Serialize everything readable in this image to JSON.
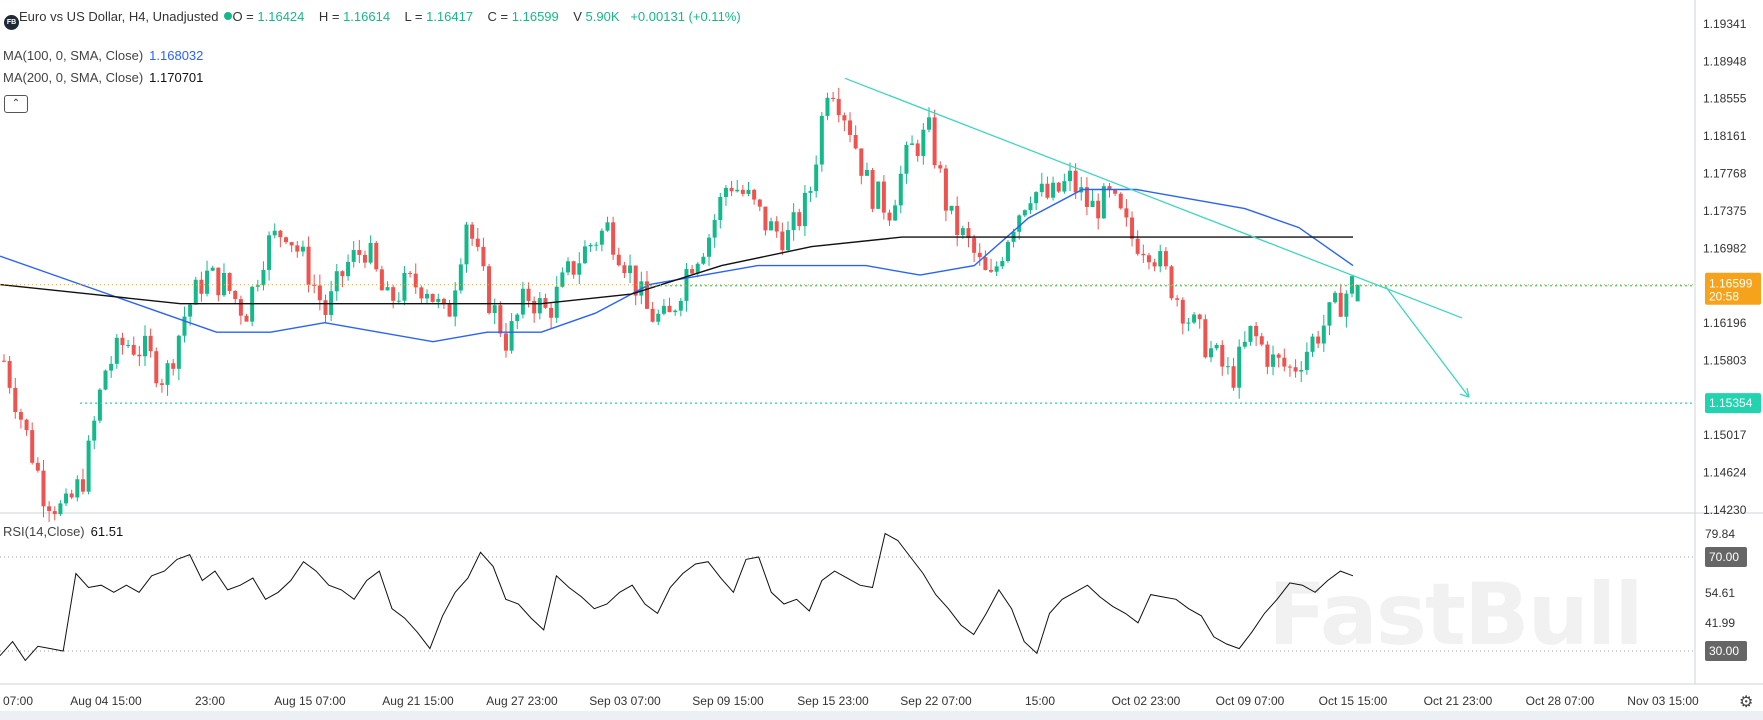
{
  "header": {
    "logo_text": "FB",
    "symbol_title": "Euro vs US Dollar, H4, Unadjusted",
    "ohlc": [
      {
        "label": "O",
        "value": "1.16424"
      },
      {
        "label": "H",
        "value": "1.16614"
      },
      {
        "label": "L",
        "value": "1.16417"
      },
      {
        "label": "C",
        "value": "1.16599"
      }
    ],
    "volume_label": "V",
    "volume_value": "5.90K",
    "change": "+0.00131 (+0.11%)"
  },
  "indicators": [
    {
      "label": "MA(100, 0, SMA, Close)",
      "value": "1.168032",
      "color": "#2962ff"
    },
    {
      "label": "MA(200, 0, SMA, Close)",
      "value": "1.170701",
      "color": "#111111"
    }
  ],
  "rsi": {
    "label": "RSI(14,Close)",
    "value": "61.51"
  },
  "watermark": "FastBull",
  "icons": {
    "settings": "gear-icon",
    "collapse": "chevron-up-icon"
  },
  "colors": {
    "up": "#13b98a",
    "down": "#ef5350",
    "ma100": "#2962ff",
    "ma200": "#111111",
    "trendline": "#3fd5c0",
    "current_price_bg": "#f7a21b",
    "level_bg": "#22d3b0",
    "axis_tag_bg": "#666666"
  },
  "chart_data": [
    {
      "type": "candlestick",
      "title": "Euro vs US Dollar, H4, Unadjusted",
      "price_axis_ticks": [
        "1.19341",
        "1.18948",
        "1.18555",
        "1.18161",
        "1.17768",
        "1.17375",
        "1.16982",
        "1.16196",
        "1.15803",
        "1.15017",
        "1.14624",
        "1.14230"
      ],
      "time_axis_ticks": [
        "07:00",
        "Aug 04 15:00",
        "23:00",
        "Aug 15 07:00",
        "Aug 21 15:00",
        "Aug 27 23:00",
        "Sep 03 07:00",
        "Sep 09 15:00",
        "Sep 15 23:00",
        "Sep 22 07:00",
        "15:00",
        "Oct 02 23:00",
        "Oct 09 07:00",
        "Oct 15 15:00",
        "Oct 21 23:00",
        "Oct 28 07:00",
        "Nov 03 15:00"
      ],
      "current_price": "1.16599",
      "countdown": "20:58",
      "horizontal_level": "1.15354",
      "ma100_last": 1.168032,
      "ma200_last": 1.170701,
      "close_path": [
        1.158,
        1.151,
        1.144,
        1.142,
        1.146,
        1.157,
        1.16,
        1.159,
        1.156,
        1.163,
        1.167,
        1.166,
        1.163,
        1.17,
        1.172,
        1.168,
        1.163,
        1.168,
        1.17,
        1.164,
        1.166,
        1.166,
        1.162,
        1.173,
        1.165,
        1.16,
        1.165,
        1.163,
        1.167,
        1.17,
        1.172,
        1.168,
        1.163,
        1.162,
        1.168,
        1.171,
        1.177,
        1.175,
        1.172,
        1.171,
        1.175,
        1.188,
        1.183,
        1.176,
        1.174,
        1.18,
        1.182,
        1.173,
        1.17,
        1.166,
        1.172,
        1.176,
        1.175,
        1.177,
        1.174,
        1.175,
        1.171,
        1.17,
        1.166,
        1.162,
        1.159,
        1.156,
        1.161,
        1.158,
        1.157,
        1.16,
        1.163,
        1.166
      ],
      "ma100_path": [
        1.169,
        1.167,
        1.165,
        1.163,
        1.161,
        1.161,
        1.162,
        1.161,
        1.16,
        1.161,
        1.161,
        1.163,
        1.166,
        1.167,
        1.168,
        1.168,
        1.168,
        1.167,
        1.168,
        1.173,
        1.176,
        1.176,
        1.175,
        1.174,
        1.172,
        1.168
      ],
      "ma200_path": [
        1.166,
        1.165,
        1.164,
        1.164,
        1.164,
        1.164,
        1.164,
        1.165,
        1.168,
        1.17,
        1.171,
        1.171,
        1.171,
        1.171,
        1.171,
        1.171
      ],
      "downtrend_line": {
        "from": 1.1877,
        "to": 1.1625
      },
      "projection_target": "1.15354"
    },
    {
      "type": "line",
      "title": "RSI(14,Close)",
      "axis_ticks": [
        "79.84",
        "70.00",
        "54.61",
        "41.99",
        "30.00"
      ],
      "levels": [
        70,
        30
      ],
      "values": [
        28,
        34,
        26,
        32,
        31,
        30,
        63,
        57,
        58,
        55,
        58,
        55,
        62,
        64,
        69,
        71,
        60,
        64,
        56,
        58,
        61,
        52,
        55,
        60,
        68,
        64,
        58,
        56,
        52,
        60,
        64,
        48,
        44,
        38,
        31,
        45,
        55,
        61,
        72,
        66,
        52,
        50,
        44,
        39,
        62,
        57,
        53,
        48,
        50,
        55,
        58,
        50,
        46,
        57,
        63,
        67,
        68,
        61,
        55,
        69,
        70,
        55,
        50,
        52,
        47,
        60,
        64,
        61,
        58,
        57,
        80,
        77,
        70,
        63,
        54,
        48,
        41,
        37,
        46,
        56,
        48,
        34,
        29,
        46,
        52,
        55,
        58,
        53,
        49,
        46,
        42,
        54,
        53,
        52,
        48,
        45,
        36,
        33,
        31,
        38,
        46,
        52,
        59,
        58,
        55,
        60,
        64,
        62
      ]
    }
  ]
}
